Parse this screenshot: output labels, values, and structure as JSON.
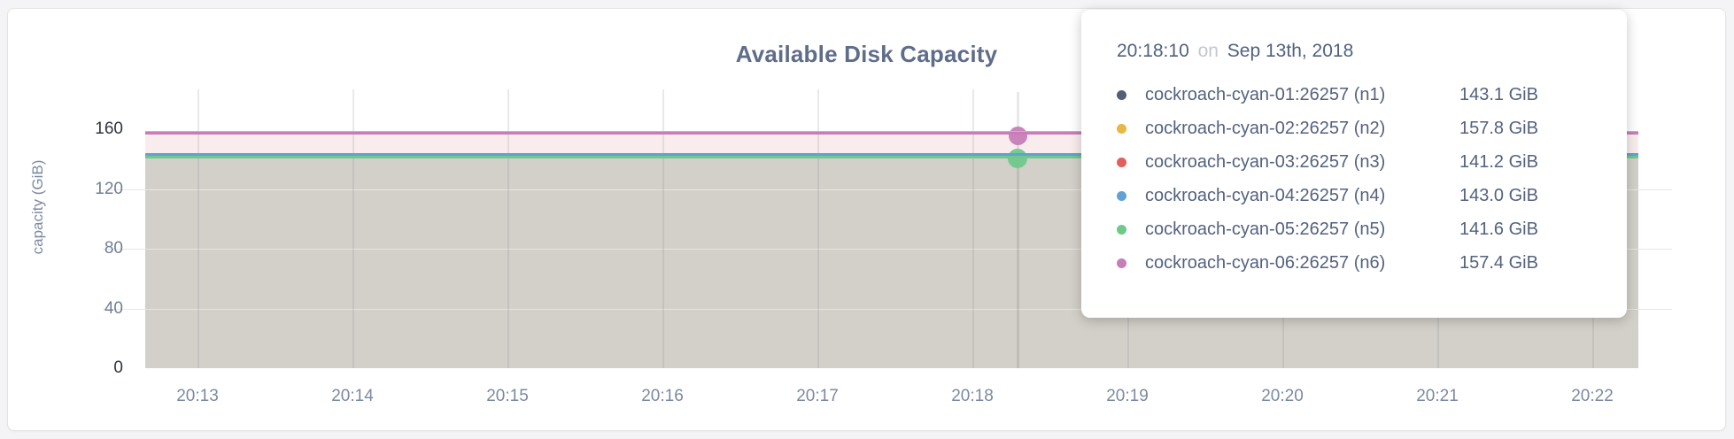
{
  "chart_data": {
    "type": "area",
    "title": "Available Disk Capacity",
    "xlabel": "",
    "ylabel": "capacity (GiB)",
    "unit": "GiB",
    "grid": true,
    "ylim": [
      0,
      160
    ],
    "y_tick_labels": [
      "0",
      "40",
      "80",
      "120",
      "160"
    ],
    "y_tick_values": [
      0,
      40,
      80,
      120,
      160
    ],
    "x_tick_labels": [
      "20:13",
      "20:14",
      "20:15",
      "20:16",
      "20:17",
      "20:18",
      "20:19",
      "20:20",
      "20:21",
      "20:22"
    ],
    "legend_position": "tooltip-overlay",
    "series": [
      {
        "name": "cockroach-cyan-01:26257 (n1)",
        "value": 143.1,
        "color": "#525f79"
      },
      {
        "name": "cockroach-cyan-02:26257 (n2)",
        "value": 157.8,
        "color": "#e8b843"
      },
      {
        "name": "cockroach-cyan-03:26257 (n3)",
        "value": 141.2,
        "color": "#e0605d"
      },
      {
        "name": "cockroach-cyan-04:26257 (n4)",
        "value": 143.0,
        "color": "#61a1d6"
      },
      {
        "name": "cockroach-cyan-05:26257 (n5)",
        "value": 141.6,
        "color": "#6fc98b"
      },
      {
        "name": "cockroach-cyan-06:26257 (n6)",
        "value": 157.4,
        "color": "#c77eb8"
      }
    ],
    "hover": {
      "time": "20:18:10",
      "markers": [
        {
          "series": "cockroach-cyan-06:26257 (n6)",
          "color": "#c77eb8"
        },
        {
          "series": "cockroach-cyan-05:26257 (n5)",
          "color": "#6fc98b"
        }
      ]
    },
    "fill_colors": {
      "upper_band": "#f8edec",
      "lower_area": "#d3d0c9"
    }
  },
  "tooltip": {
    "time": "20:18:10",
    "separator": "on",
    "date": "Sep 13th, 2018",
    "rows": [
      {
        "label": "cockroach-cyan-01:26257 (n1)",
        "value": "143.1 GiB",
        "color": "#525f79"
      },
      {
        "label": "cockroach-cyan-02:26257 (n2)",
        "value": "157.8 GiB",
        "color": "#e8b843"
      },
      {
        "label": "cockroach-cyan-03:26257 (n3)",
        "value": "141.2 GiB",
        "color": "#e0605d"
      },
      {
        "label": "cockroach-cyan-04:26257 (n4)",
        "value": "143.0 GiB",
        "color": "#61a1d6"
      },
      {
        "label": "cockroach-cyan-05:26257 (n5)",
        "value": "141.6 GiB",
        "color": "#6fc98b"
      },
      {
        "label": "cockroach-cyan-06:26257 (n6)",
        "value": "157.4 GiB",
        "color": "#c77eb8"
      }
    ]
  }
}
